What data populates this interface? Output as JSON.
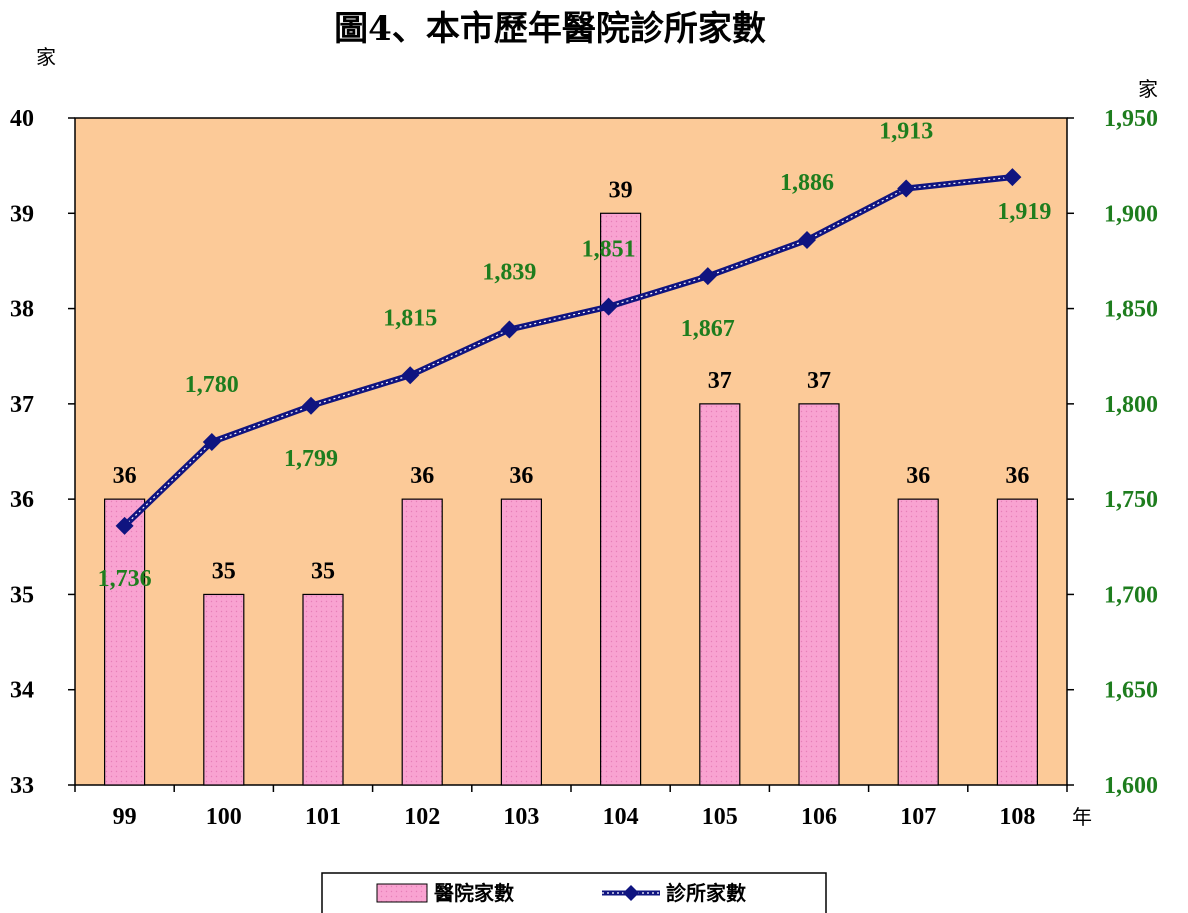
{
  "chart_data": {
    "type": "bar+line",
    "title": "圖4、本市歷年醫院診所家數",
    "y_left_unit": "家",
    "y_right_unit": "家",
    "x_unit": "年",
    "categories": [
      "99",
      "100",
      "101",
      "102",
      "103",
      "104",
      "105",
      "106",
      "107",
      "108"
    ],
    "y_left": {
      "ylim": [
        33,
        40
      ],
      "ticks": [
        "33",
        "34",
        "35",
        "36",
        "37",
        "38",
        "39",
        "40"
      ]
    },
    "y_right": {
      "ylim": [
        1600,
        1950
      ],
      "ticks": [
        "1,600",
        "1,650",
        "1,700",
        "1,750",
        "1,800",
        "1,850",
        "1,900",
        "1,950"
      ]
    },
    "series": [
      {
        "name": "醫院家數",
        "type": "bar",
        "axis": "left",
        "values": [
          36,
          35,
          35,
          36,
          36,
          39,
          37,
          37,
          36,
          36
        ],
        "labels": [
          "36",
          "35",
          "35",
          "36",
          "36",
          "39",
          "37",
          "37",
          "36",
          "36"
        ],
        "color": "#f9a3d1"
      },
      {
        "name": "診所家數",
        "type": "line",
        "axis": "right",
        "values": [
          1736,
          1780,
          1799,
          1815,
          1839,
          1851,
          1867,
          1886,
          1913,
          1919
        ],
        "labels": [
          "1,736",
          "1,780",
          "1,799",
          "1,815",
          "1,839",
          "1,851",
          "1,867",
          "1,886",
          "1,913",
          "1,919"
        ],
        "color": "#0f1480"
      }
    ],
    "plot_background": "#fcca98",
    "legend_position": "bottom",
    "grid": false
  }
}
